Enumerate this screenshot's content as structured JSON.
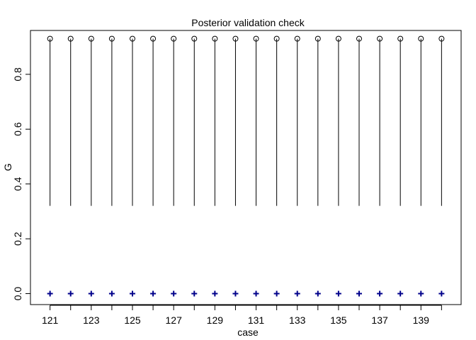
{
  "chart_data": {
    "type": "scatter",
    "title": "Posterior validation check",
    "xlabel": "case",
    "ylabel": "G",
    "x": [
      121,
      122,
      123,
      124,
      125,
      126,
      127,
      128,
      129,
      130,
      131,
      132,
      133,
      134,
      135,
      136,
      137,
      138,
      139,
      140
    ],
    "xlim": [
      120.05,
      140.95
    ],
    "ylim": [
      -0.04,
      0.96
    ],
    "x_ticks": [
      121,
      123,
      125,
      127,
      129,
      131,
      133,
      135,
      137,
      139
    ],
    "y_ticks": [
      0.0,
      0.2,
      0.4,
      0.6,
      0.8
    ],
    "y_tick_labels": [
      "0.0",
      "0.2",
      "0.4",
      "0.6",
      "0.8"
    ],
    "intervals": {
      "lower": 0.32,
      "upper": 0.93
    },
    "series": [
      {
        "marker": "open-circle",
        "color": "#000000",
        "values": [
          0.93,
          0.93,
          0.93,
          0.93,
          0.93,
          0.93,
          0.93,
          0.93,
          0.93,
          0.93,
          0.93,
          0.93,
          0.93,
          0.93,
          0.93,
          0.93,
          0.93,
          0.93,
          0.93,
          0.93
        ]
      },
      {
        "marker": "plus",
        "color": "#00008b",
        "values": [
          0,
          0,
          0,
          0,
          0,
          0,
          0,
          0,
          0,
          0,
          0,
          0,
          0,
          0,
          0,
          0,
          0,
          0,
          0,
          0
        ]
      }
    ],
    "grid": false,
    "legend": "none"
  }
}
